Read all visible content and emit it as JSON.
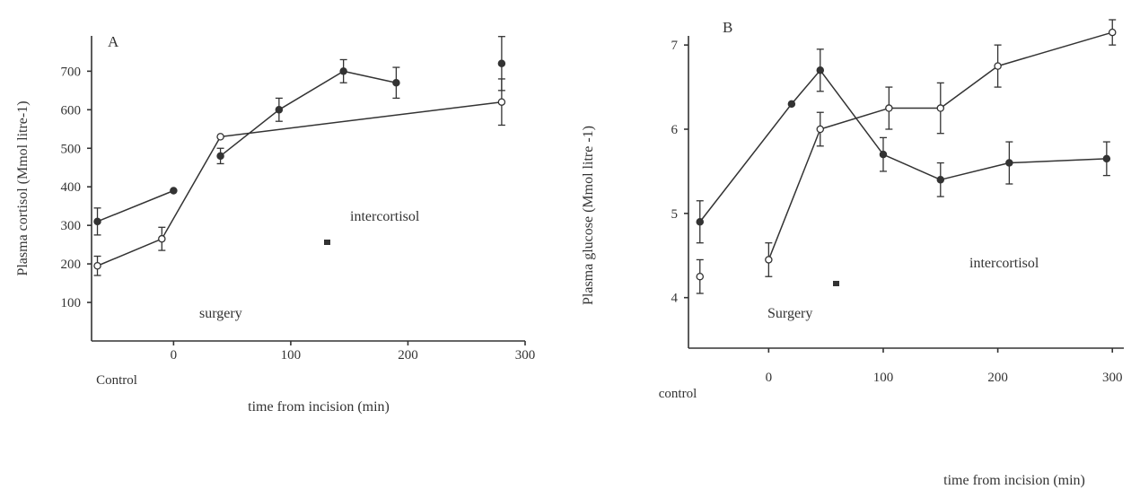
{
  "chart_data": [
    {
      "type": "line",
      "panel": "A",
      "ylabel": "Plasma cortisol (Mmol litre-1)",
      "xlabel": "time from incision (min)",
      "x_ticks": [
        "0",
        "100",
        "200",
        "300"
      ],
      "x_control_label": "Control",
      "y_ticks": [
        "100",
        "200",
        "300",
        "400",
        "500",
        "600",
        "700"
      ],
      "xlim": [
        -70,
        300
      ],
      "ylim": [
        0,
        780
      ],
      "legend": {
        "marker": "filled",
        "label": "intercortisol"
      },
      "annotation": "surgery",
      "series": [
        {
          "marker": "filled",
          "x": [
            -65,
            0,
            40,
            90,
            145,
            190,
            280
          ],
          "y": [
            310,
            390,
            480,
            600,
            700,
            670,
            720
          ],
          "connect": [
            [
              0,
              1
            ],
            [
              2,
              3
            ],
            [
              3,
              4
            ],
            [
              4,
              5
            ]
          ],
          "err": [
            35,
            0,
            20,
            30,
            30,
            40,
            70
          ]
        },
        {
          "marker": "open",
          "x": [
            -65,
            -10,
            40,
            280
          ],
          "y": [
            195,
            265,
            530,
            620
          ],
          "connect": [
            [
              0,
              1
            ],
            [
              1,
              2
            ],
            [
              2,
              3
            ]
          ],
          "err": [
            25,
            30,
            0,
            60
          ]
        }
      ],
      "color": "#333333"
    },
    {
      "type": "line",
      "panel": "B",
      "ylabel": "Plasma glucose (Mmol litre -1)",
      "xlabel": "time from incision (min)",
      "x_ticks": [
        "0",
        "100",
        "200",
        "300"
      ],
      "x_control_label": "control",
      "y_ticks": [
        "4",
        "5",
        "6",
        "7"
      ],
      "xlim": [
        -70,
        310
      ],
      "ylim": [
        3.4,
        7.3
      ],
      "legend": {
        "marker": "filled",
        "label": "intercortisol"
      },
      "annotation": "Surgery",
      "series": [
        {
          "marker": "filled",
          "x": [
            -60,
            20,
            45,
            100,
            150,
            210,
            295
          ],
          "y": [
            4.9,
            6.3,
            6.7,
            5.7,
            5.4,
            5.6,
            5.65
          ],
          "connect": [
            [
              0,
              1
            ],
            [
              1,
              2
            ],
            [
              2,
              3
            ],
            [
              3,
              4
            ],
            [
              4,
              5
            ],
            [
              5,
              6
            ]
          ],
          "err": [
            0.25,
            0,
            0.25,
            0.2,
            0.2,
            0.25,
            0.2
          ]
        },
        {
          "marker": "open",
          "x": [
            -60,
            0,
            45,
            105,
            150,
            200,
            300
          ],
          "y": [
            4.25,
            4.45,
            6.0,
            6.25,
            6.25,
            6.75,
            7.15
          ],
          "connect": [
            [
              1,
              2
            ],
            [
              2,
              3
            ],
            [
              3,
              4
            ],
            [
              4,
              5
            ],
            [
              5,
              6
            ]
          ],
          "err": [
            0.2,
            0.2,
            0.2,
            0.25,
            0.3,
            0.25,
            0.15
          ]
        }
      ],
      "color": "#333333"
    }
  ]
}
